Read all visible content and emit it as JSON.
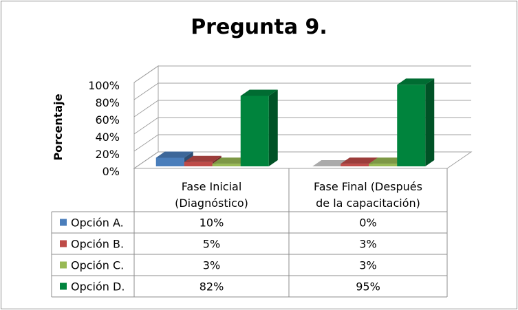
{
  "chart_data": {
    "type": "bar",
    "title": "Pregunta 9.",
    "ylabel": "Porcentaje",
    "xlabel": "",
    "ylim": [
      0,
      100
    ],
    "yticks": [
      "0%",
      "20%",
      "40%",
      "60%",
      "80%",
      "100%"
    ],
    "categories": [
      [
        "Fase Inicial",
        "(Diagnóstico)"
      ],
      [
        "Fase Final (Después",
        "de la capacitación)"
      ]
    ],
    "series": [
      {
        "name": "Opción A.",
        "values": [
          10,
          0
        ],
        "labels": [
          "10%",
          "0%"
        ],
        "color": "#4a7ebb"
      },
      {
        "name": "Opción B.",
        "values": [
          5,
          3
        ],
        "labels": [
          "5%",
          "3%"
        ],
        "color": "#be4b48"
      },
      {
        "name": "Opción C.",
        "values": [
          3,
          3
        ],
        "labels": [
          "3%",
          "3%"
        ],
        "color": "#98b954"
      },
      {
        "name": "Opción D.",
        "values": [
          82,
          95
        ],
        "labels": [
          "82%",
          "95%"
        ],
        "color": "#00843d"
      }
    ],
    "grid": true,
    "legend": "data-table"
  }
}
